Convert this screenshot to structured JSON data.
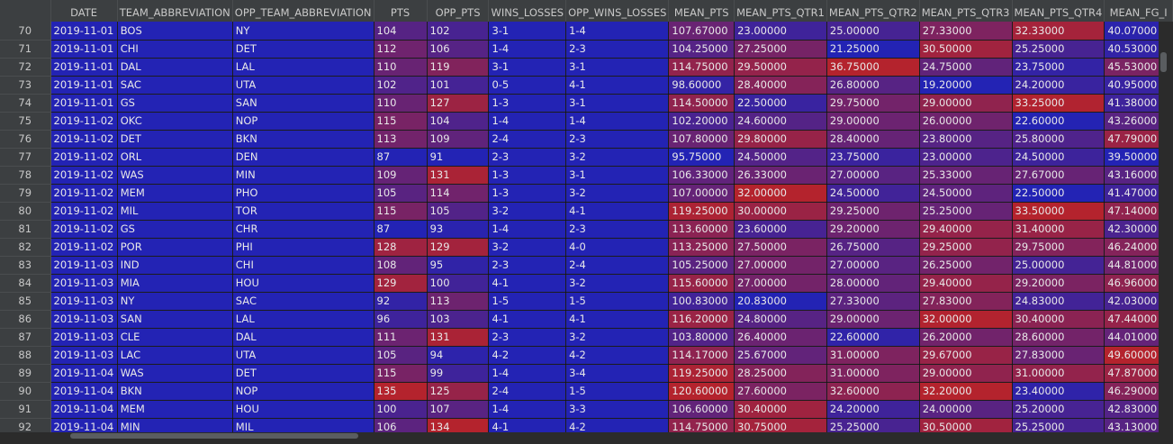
{
  "table": {
    "index_header": "",
    "columns": [
      "DATE",
      "TEAM_ABBREVIATION",
      "OPP_TEAM_ABBREVIATION",
      "PTS",
      "OPP_PTS",
      "WINS_LOSSES",
      "OPP_WINS_LOSSES",
      "MEAN_PTS",
      "MEAN_PTS_QTR1",
      "MEAN_PTS_QTR2",
      "MEAN_PTS_QTR3",
      "MEAN_PTS_QTR4",
      "MEAN_FG_I"
    ],
    "rows": [
      {
        "index": "70",
        "cells": [
          "2019-11-01",
          "BOS",
          "NY",
          "104",
          "102",
          "3-1",
          "1-4",
          "107.67000",
          "23.00000",
          "25.00000",
          "27.33000",
          "32.33000",
          "40.07000"
        ]
      },
      {
        "index": "71",
        "cells": [
          "2019-11-01",
          "CHI",
          "DET",
          "112",
          "106",
          "1-4",
          "2-3",
          "104.25000",
          "27.25000",
          "21.25000",
          "30.50000",
          "25.25000",
          "40.53000"
        ]
      },
      {
        "index": "72",
        "cells": [
          "2019-11-01",
          "DAL",
          "LAL",
          "110",
          "119",
          "3-1",
          "3-1",
          "114.75000",
          "29.50000",
          "36.75000",
          "24.75000",
          "23.75000",
          "45.53000"
        ]
      },
      {
        "index": "73",
        "cells": [
          "2019-11-01",
          "SAC",
          "UTA",
          "102",
          "101",
          "0-5",
          "4-1",
          "98.60000",
          "28.40000",
          "26.80000",
          "19.20000",
          "24.20000",
          "40.95000"
        ]
      },
      {
        "index": "74",
        "cells": [
          "2019-11-01",
          "GS",
          "SAN",
          "110",
          "127",
          "1-3",
          "3-1",
          "114.50000",
          "22.50000",
          "29.75000",
          "29.00000",
          "33.25000",
          "41.38000"
        ]
      },
      {
        "index": "75",
        "cells": [
          "2019-11-02",
          "OKC",
          "NOP",
          "115",
          "104",
          "1-4",
          "1-4",
          "102.20000",
          "24.60000",
          "29.00000",
          "26.00000",
          "22.60000",
          "43.26000"
        ]
      },
      {
        "index": "76",
        "cells": [
          "2019-11-02",
          "DET",
          "BKN",
          "113",
          "109",
          "2-4",
          "2-3",
          "107.80000",
          "29.80000",
          "28.40000",
          "23.80000",
          "25.80000",
          "47.79000"
        ]
      },
      {
        "index": "77",
        "cells": [
          "2019-11-02",
          "ORL",
          "DEN",
          "87",
          "91",
          "2-3",
          "3-2",
          "95.75000",
          "24.50000",
          "23.75000",
          "23.00000",
          "24.50000",
          "39.50000"
        ]
      },
      {
        "index": "78",
        "cells": [
          "2019-11-02",
          "WAS",
          "MIN",
          "109",
          "131",
          "1-3",
          "3-1",
          "106.33000",
          "26.33000",
          "27.00000",
          "25.33000",
          "27.67000",
          "43.16000"
        ]
      },
      {
        "index": "79",
        "cells": [
          "2019-11-02",
          "MEM",
          "PHO",
          "105",
          "114",
          "1-3",
          "3-2",
          "107.00000",
          "32.00000",
          "24.50000",
          "24.50000",
          "22.50000",
          "41.47000"
        ]
      },
      {
        "index": "80",
        "cells": [
          "2019-11-02",
          "MIL",
          "TOR",
          "115",
          "105",
          "3-2",
          "4-1",
          "119.25000",
          "30.00000",
          "29.25000",
          "25.25000",
          "33.50000",
          "47.14000"
        ]
      },
      {
        "index": "81",
        "cells": [
          "2019-11-02",
          "GS",
          "CHR",
          "87",
          "93",
          "1-4",
          "2-3",
          "113.60000",
          "23.60000",
          "29.20000",
          "29.40000",
          "31.40000",
          "42.30000"
        ]
      },
      {
        "index": "82",
        "cells": [
          "2019-11-02",
          "POR",
          "PHI",
          "128",
          "129",
          "3-2",
          "4-0",
          "113.25000",
          "27.50000",
          "26.75000",
          "29.25000",
          "29.75000",
          "46.24000"
        ]
      },
      {
        "index": "83",
        "cells": [
          "2019-11-03",
          "IND",
          "CHI",
          "108",
          "95",
          "2-3",
          "2-4",
          "105.25000",
          "27.00000",
          "27.00000",
          "26.25000",
          "25.00000",
          "44.81000"
        ]
      },
      {
        "index": "84",
        "cells": [
          "2019-11-03",
          "MIA",
          "HOU",
          "129",
          "100",
          "4-1",
          "3-2",
          "115.60000",
          "27.00000",
          "28.00000",
          "29.40000",
          "29.20000",
          "46.96000"
        ]
      },
      {
        "index": "85",
        "cells": [
          "2019-11-03",
          "NY",
          "SAC",
          "92",
          "113",
          "1-5",
          "1-5",
          "100.83000",
          "20.83000",
          "27.33000",
          "27.83000",
          "24.83000",
          "42.03000"
        ]
      },
      {
        "index": "86",
        "cells": [
          "2019-11-03",
          "SAN",
          "LAL",
          "96",
          "103",
          "4-1",
          "4-1",
          "116.20000",
          "24.80000",
          "29.00000",
          "32.00000",
          "30.40000",
          "47.44000"
        ]
      },
      {
        "index": "87",
        "cells": [
          "2019-11-03",
          "CLE",
          "DAL",
          "111",
          "131",
          "2-3",
          "3-2",
          "103.80000",
          "26.40000",
          "22.60000",
          "26.20000",
          "28.60000",
          "44.01000"
        ]
      },
      {
        "index": "88",
        "cells": [
          "2019-11-03",
          "LAC",
          "UTA",
          "105",
          "94",
          "4-2",
          "4-2",
          "114.17000",
          "25.67000",
          "31.00000",
          "29.67000",
          "27.83000",
          "49.60000"
        ]
      },
      {
        "index": "89",
        "cells": [
          "2019-11-04",
          "WAS",
          "DET",
          "115",
          "99",
          "1-4",
          "3-4",
          "119.25000",
          "28.25000",
          "31.00000",
          "29.00000",
          "31.00000",
          "47.87000"
        ]
      },
      {
        "index": "90",
        "cells": [
          "2019-11-04",
          "BKN",
          "NOP",
          "135",
          "125",
          "2-4",
          "1-5",
          "120.60000",
          "27.60000",
          "32.60000",
          "32.20000",
          "23.40000",
          "46.29000"
        ]
      },
      {
        "index": "91",
        "cells": [
          "2019-11-04",
          "MEM",
          "HOU",
          "100",
          "107",
          "1-4",
          "3-3",
          "106.60000",
          "30.40000",
          "24.20000",
          "24.00000",
          "25.20000",
          "42.83000"
        ]
      },
      {
        "index": "92",
        "cells": [
          "2019-11-04",
          "MIN",
          "MIL",
          "106",
          "134",
          "4-1",
          "4-2",
          "114.75000",
          "30.75000",
          "25.25000",
          "30.50000",
          "25.25000",
          "43.13000"
        ]
      }
    ]
  },
  "colors": {
    "low": "#2323b4",
    "high": "#b4232d",
    "index_bg": "#3c3f41",
    "header_bg": "#3c3f41"
  }
}
